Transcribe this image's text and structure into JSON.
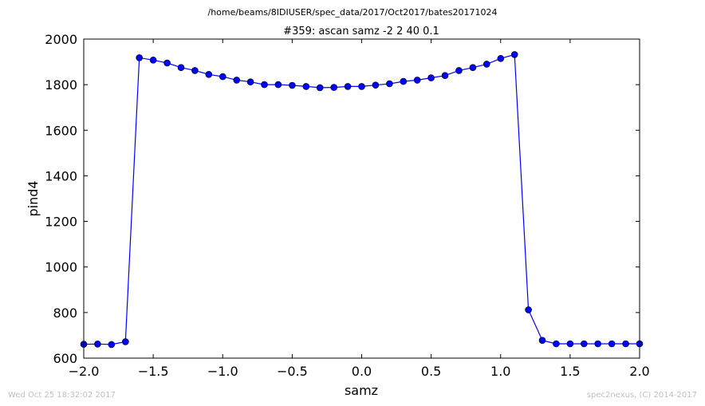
{
  "suptitle": "/home/beams/8IDIUSER/spec_data/2017/Oct2017/bates20171024",
  "footer": {
    "timestamp": "Wed Oct 25 18:32:02 2017",
    "credit": "spec2nexus, (C) 2014-2017"
  },
  "colors": {
    "line": "#0000ff",
    "marker": "#0000ff",
    "marker_edge": "#000000"
  },
  "chart_data": {
    "type": "line",
    "title": "#359: ascan  samz -2 2  40 0.1",
    "xlabel": "samz",
    "ylabel": "pind4",
    "xlim": [
      -2.0,
      2.0
    ],
    "ylim": [
      600,
      2000
    ],
    "xticks": [
      "−2.0",
      "−1.5",
      "−1.0",
      "−0.5",
      "0.0",
      "0.5",
      "1.0",
      "1.5",
      "2.0"
    ],
    "yticks": [
      "600",
      "800",
      "1000",
      "1200",
      "1400",
      "1600",
      "1800",
      "2000"
    ],
    "grid": false,
    "legend": "none",
    "marker": "circle",
    "x": [
      -2.0,
      -1.9,
      -1.8,
      -1.7,
      -1.6,
      -1.5,
      -1.4,
      -1.3,
      -1.2,
      -1.1,
      -1.0,
      -0.9,
      -0.8,
      -0.7,
      -0.6,
      -0.5,
      -0.4,
      -0.3,
      -0.2,
      -0.1,
      0.0,
      0.1,
      0.2,
      0.3,
      0.4,
      0.5,
      0.6,
      0.7,
      0.8,
      0.9,
      1.0,
      1.1,
      1.2,
      1.3,
      1.4,
      1.5,
      1.6,
      1.7,
      1.8,
      1.9,
      2.0
    ],
    "y": [
      661,
      662,
      660,
      672,
      1918,
      1908,
      1895,
      1875,
      1862,
      1845,
      1835,
      1820,
      1812,
      1800,
      1800,
      1797,
      1792,
      1787,
      1788,
      1792,
      1792,
      1798,
      1804,
      1814,
      1820,
      1830,
      1840,
      1862,
      1875,
      1890,
      1915,
      1932,
      812,
      678,
      663,
      663,
      663,
      663,
      663,
      663,
      663
    ]
  }
}
